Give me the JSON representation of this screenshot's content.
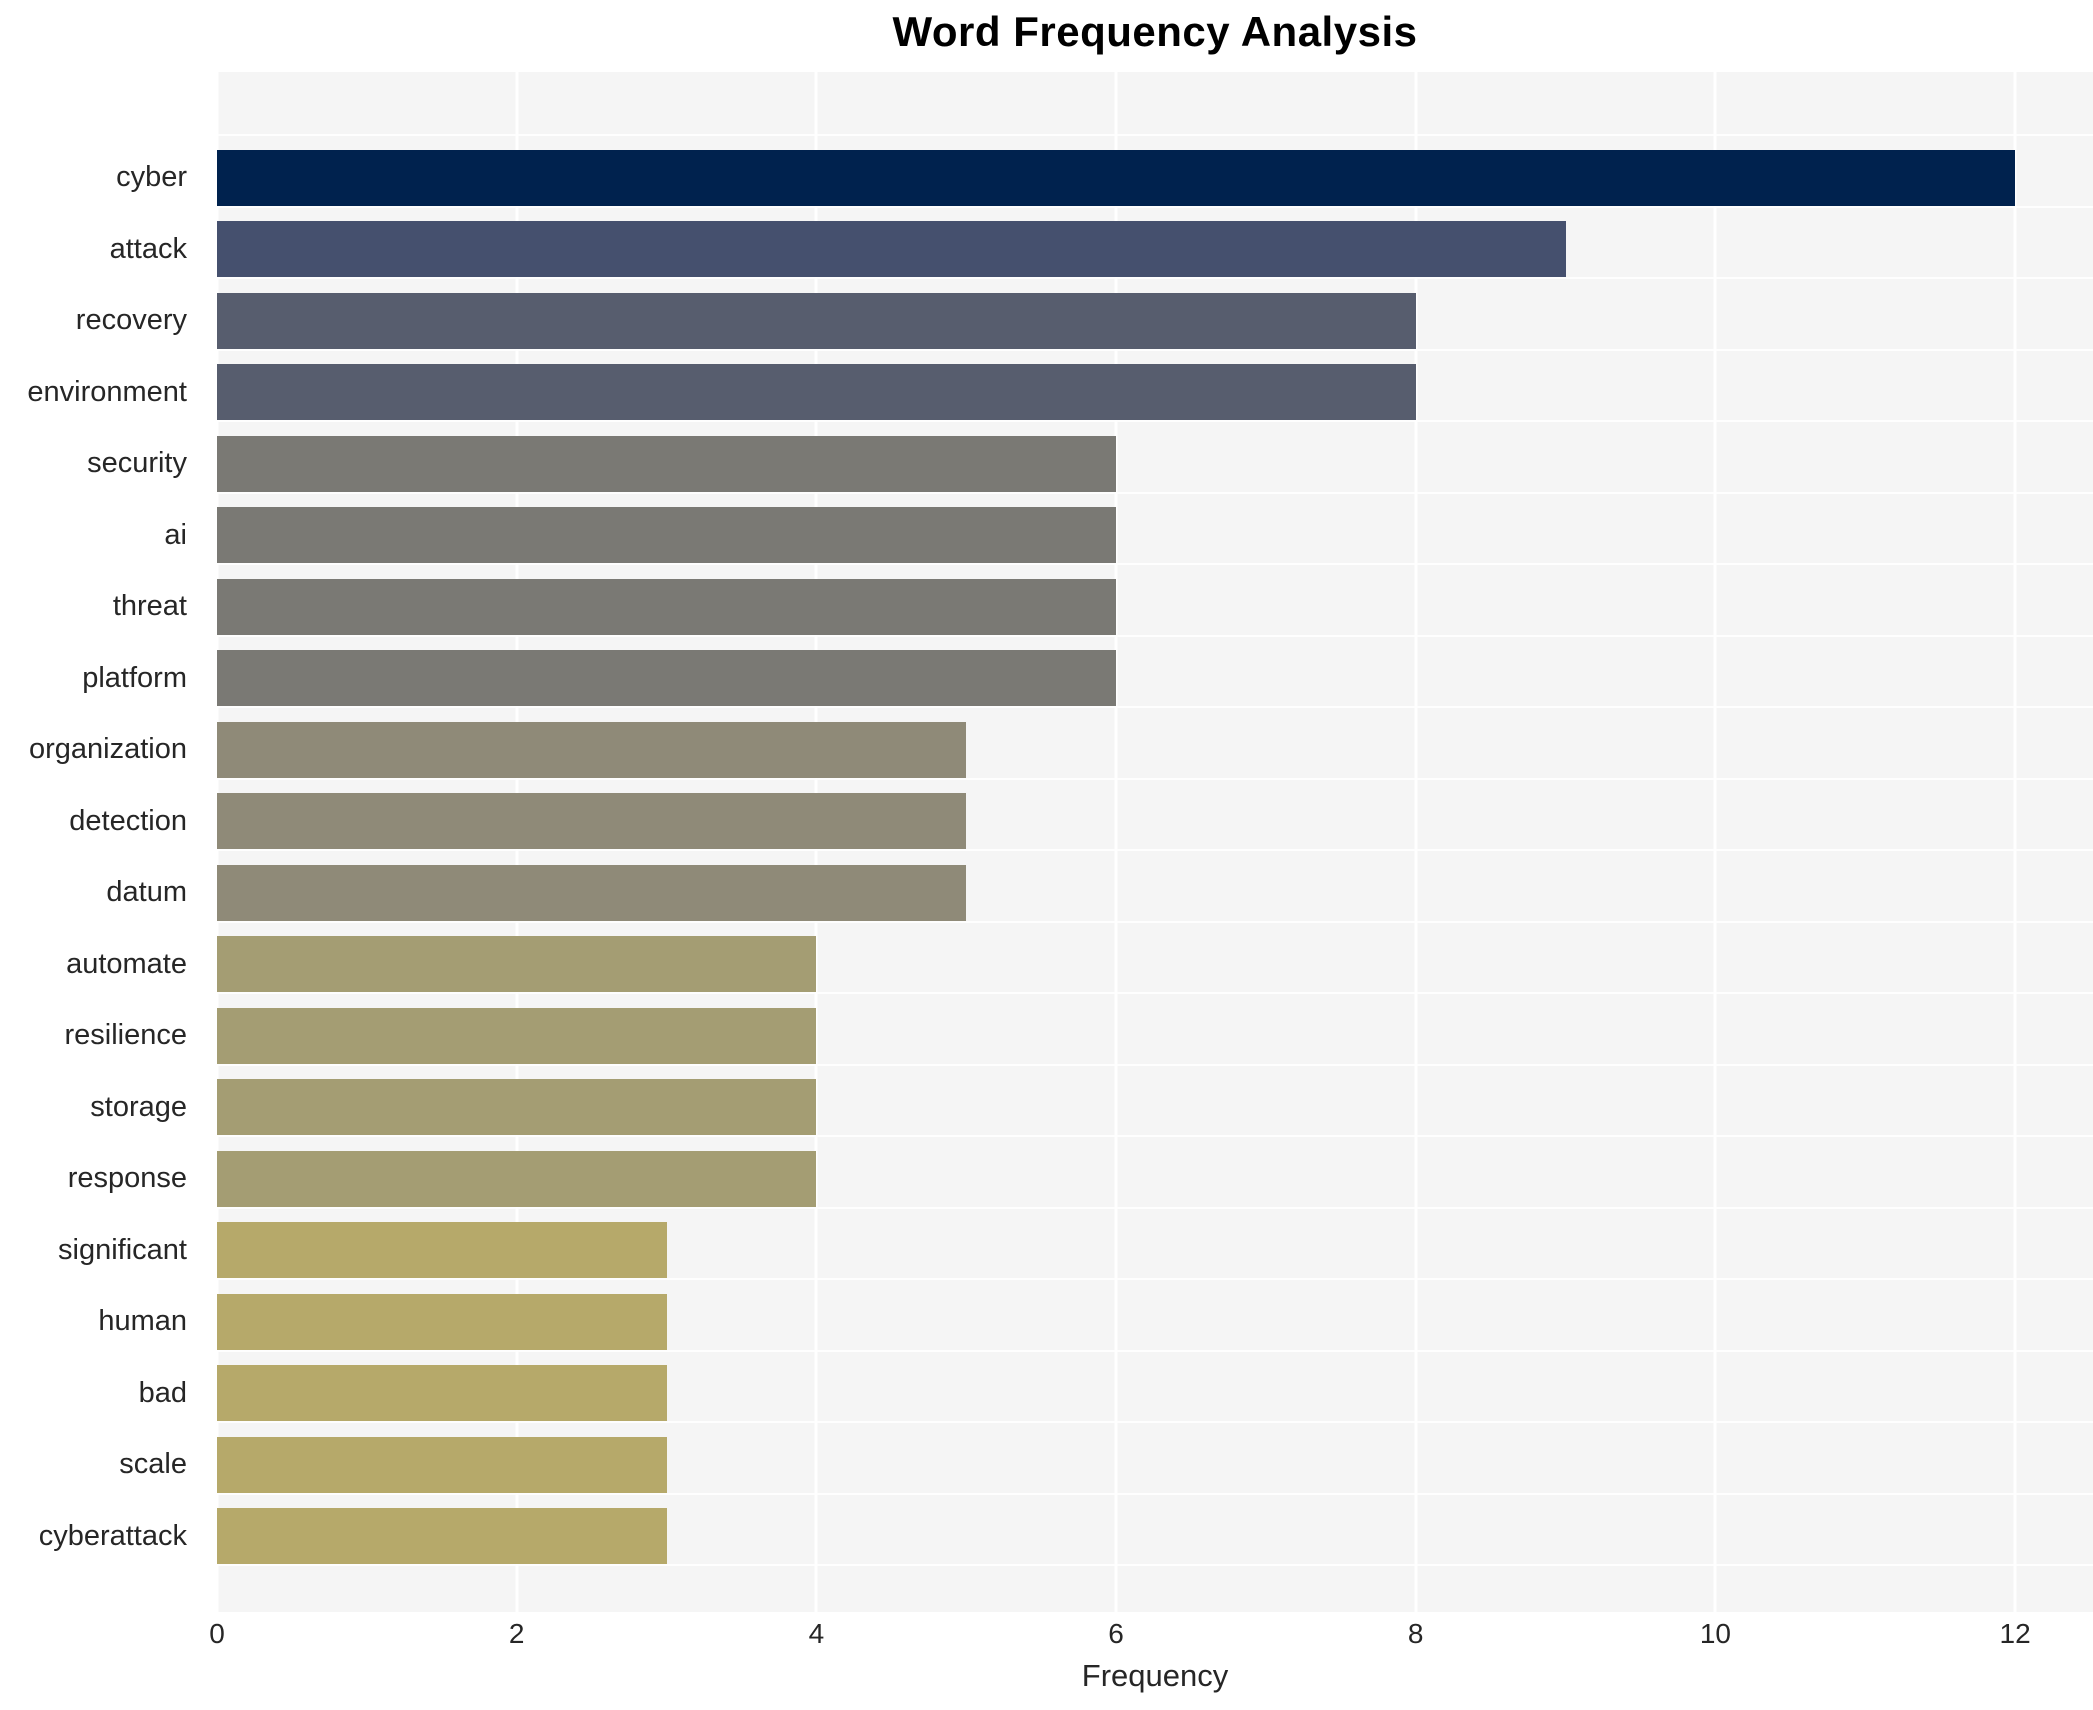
{
  "title": "Word Frequency Analysis",
  "chart_data": {
    "type": "bar",
    "orientation": "horizontal",
    "title": "Word Frequency Analysis",
    "xlabel": "Frequency",
    "ylabel": "",
    "categories": [
      "cyber",
      "attack",
      "recovery",
      "environment",
      "security",
      "ai",
      "threat",
      "platform",
      "organization",
      "detection",
      "datum",
      "automate",
      "resilience",
      "storage",
      "response",
      "significant",
      "human",
      "bad",
      "scale",
      "cyberattack"
    ],
    "values": [
      12,
      9,
      8,
      8,
      6,
      6,
      6,
      6,
      5,
      5,
      5,
      4,
      4,
      4,
      4,
      3,
      3,
      3,
      3,
      3
    ],
    "bar_colors": [
      "#00224e",
      "#45506e",
      "#575d6e",
      "#575d6e",
      "#7a7974",
      "#7a7974",
      "#7a7974",
      "#7a7974",
      "#8f8a78",
      "#8f8a78",
      "#8f8a78",
      "#a49d73",
      "#a49d73",
      "#a49d73",
      "#a49d73",
      "#b6a96a",
      "#b6a96a",
      "#b6a96a",
      "#b6a96a",
      "#b6a96a"
    ],
    "xticks": [
      0,
      2,
      4,
      6,
      8,
      10,
      12
    ],
    "xlim": [
      0,
      12.52
    ],
    "grid": true,
    "legend": "none",
    "plot_bg_color": "#f5f5f5",
    "grid_color": "#ffffff",
    "text_color": "#262626",
    "title_color": "#000000"
  }
}
